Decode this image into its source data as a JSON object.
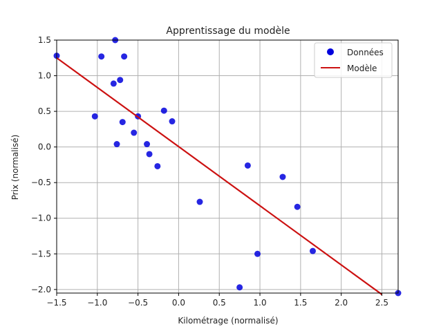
{
  "chart_data": {
    "type": "scatter",
    "title": "Apprentissage du modèle",
    "xlabel": "Kilométrage (normalisé)",
    "ylabel": "Prix (normalisé)",
    "xlim": [
      -1.5,
      2.7
    ],
    "ylim": [
      -2.05,
      1.5
    ],
    "grid": true,
    "legend_position": "top-right",
    "xticks": [
      -1.5,
      -1.0,
      -0.5,
      0.0,
      0.5,
      1.0,
      1.5,
      2.0,
      2.5
    ],
    "xtick_labels": [
      "−1.5",
      "−1.0",
      "−0.5",
      "0.0",
      "0.5",
      "1.0",
      "1.5",
      "2.0",
      "2.5"
    ],
    "yticks": [
      -2.0,
      -1.5,
      -1.0,
      -0.5,
      0.0,
      0.5,
      1.0,
      1.5
    ],
    "ytick_labels": [
      "−2.0",
      "−1.5",
      "−1.0",
      "−0.5",
      "0.0",
      "0.5",
      "1.0",
      "1.5"
    ],
    "series": [
      {
        "name": "Données",
        "kind": "scatter",
        "color": "#0000dd",
        "points": [
          {
            "x": -1.5,
            "y": 1.28
          },
          {
            "x": -1.03,
            "y": 0.43
          },
          {
            "x": -0.95,
            "y": 1.27
          },
          {
            "x": -0.8,
            "y": 0.89
          },
          {
            "x": -0.78,
            "y": 1.5
          },
          {
            "x": -0.76,
            "y": 0.04
          },
          {
            "x": -0.72,
            "y": 0.94
          },
          {
            "x": -0.69,
            "y": 0.35
          },
          {
            "x": -0.67,
            "y": 1.27
          },
          {
            "x": -0.55,
            "y": 0.2
          },
          {
            "x": -0.5,
            "y": 0.43
          },
          {
            "x": -0.39,
            "y": 0.04
          },
          {
            "x": -0.36,
            "y": -0.1
          },
          {
            "x": -0.26,
            "y": -0.27
          },
          {
            "x": -0.18,
            "y": 0.51
          },
          {
            "x": -0.08,
            "y": 0.36
          },
          {
            "x": 0.26,
            "y": -0.77
          },
          {
            "x": 0.75,
            "y": -1.97
          },
          {
            "x": 0.85,
            "y": -0.26
          },
          {
            "x": 0.97,
            "y": -1.5
          },
          {
            "x": 1.28,
            "y": -0.42
          },
          {
            "x": 1.46,
            "y": -0.84
          },
          {
            "x": 1.65,
            "y": -1.46
          },
          {
            "x": 2.7,
            "y": -2.05
          }
        ]
      },
      {
        "name": "Modèle",
        "kind": "line",
        "color": "#cc1111",
        "x": [
          -1.5,
          2.5
        ],
        "y": [
          1.25,
          -2.07
        ]
      }
    ]
  }
}
